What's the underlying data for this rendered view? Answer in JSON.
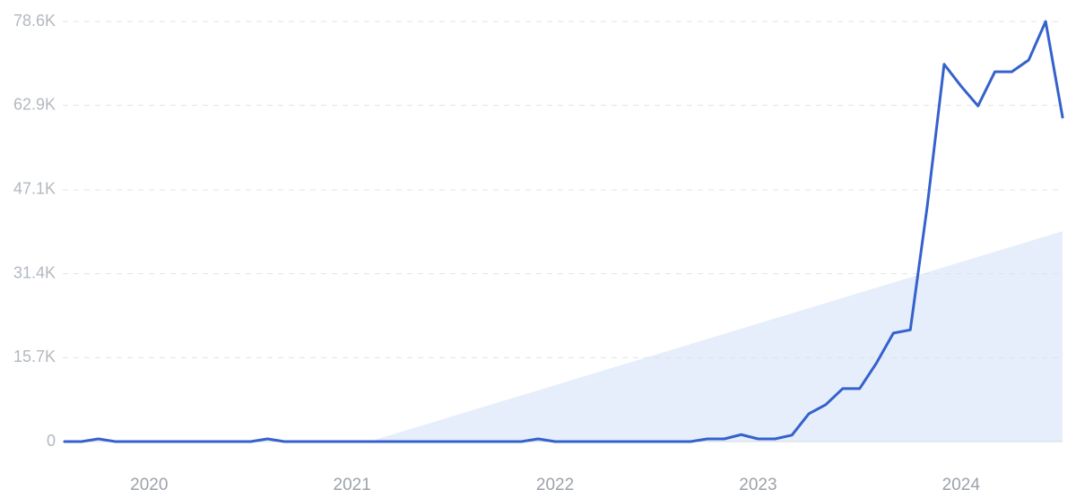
{
  "chart_data": {
    "type": "line",
    "categories": [
      null,
      null,
      null,
      null,
      null,
      "2020",
      null,
      null,
      null,
      null,
      null,
      null,
      null,
      null,
      null,
      null,
      null,
      "2021",
      null,
      null,
      null,
      null,
      null,
      null,
      null,
      null,
      null,
      null,
      null,
      "2022",
      null,
      null,
      null,
      null,
      null,
      null,
      null,
      null,
      null,
      null,
      null,
      "2023",
      null,
      null,
      null,
      null,
      null,
      null,
      null,
      null,
      null,
      null,
      null,
      "2024",
      null,
      null,
      null,
      null,
      null,
      null
    ],
    "series": [
      {
        "color": "#3461cc",
        "values": [
          0,
          0,
          500,
          0,
          0,
          0,
          0,
          0,
          0,
          0,
          0,
          0,
          500,
          0,
          0,
          0,
          0,
          0,
          0,
          0,
          0,
          0,
          0,
          0,
          0,
          0,
          0,
          0,
          500,
          0,
          0,
          0,
          0,
          0,
          0,
          0,
          0,
          0,
          500,
          500,
          1300,
          500,
          500,
          1200,
          5200,
          6900,
          9900,
          9900,
          14700,
          20300,
          20900,
          44000,
          70600,
          66500,
          62800,
          69200,
          69200,
          71400,
          78600,
          60700
        ]
      }
    ],
    "trend": {
      "color": "#dde8fa",
      "values": [
        null,
        null,
        null,
        null,
        null,
        null,
        null,
        null,
        null,
        null,
        null,
        null,
        null,
        null,
        null,
        null,
        null,
        null,
        0,
        960,
        1920,
        2880,
        3840,
        4800,
        5760,
        6720,
        7680,
        8640,
        9600,
        10560,
        11520,
        12480,
        13440,
        14400,
        15360,
        16320,
        17280,
        18240,
        19200,
        20160,
        21120,
        22080,
        23040,
        24000,
        24960,
        25920,
        26880,
        27840,
        28800,
        29760,
        30720,
        31680,
        32640,
        33600,
        34560,
        35520,
        36480,
        37440,
        38400,
        39360
      ]
    },
    "ylim": [
      0,
      78600
    ],
    "yticks": [
      {
        "value": 0,
        "label": "0"
      },
      {
        "value": 15700,
        "label": "15.7K"
      },
      {
        "value": 31400,
        "label": "31.4K"
      },
      {
        "value": 47100,
        "label": "47.1K"
      },
      {
        "value": 62900,
        "label": "62.9K"
      },
      {
        "value": 78600,
        "label": "78.6K"
      }
    ],
    "grid": true
  }
}
